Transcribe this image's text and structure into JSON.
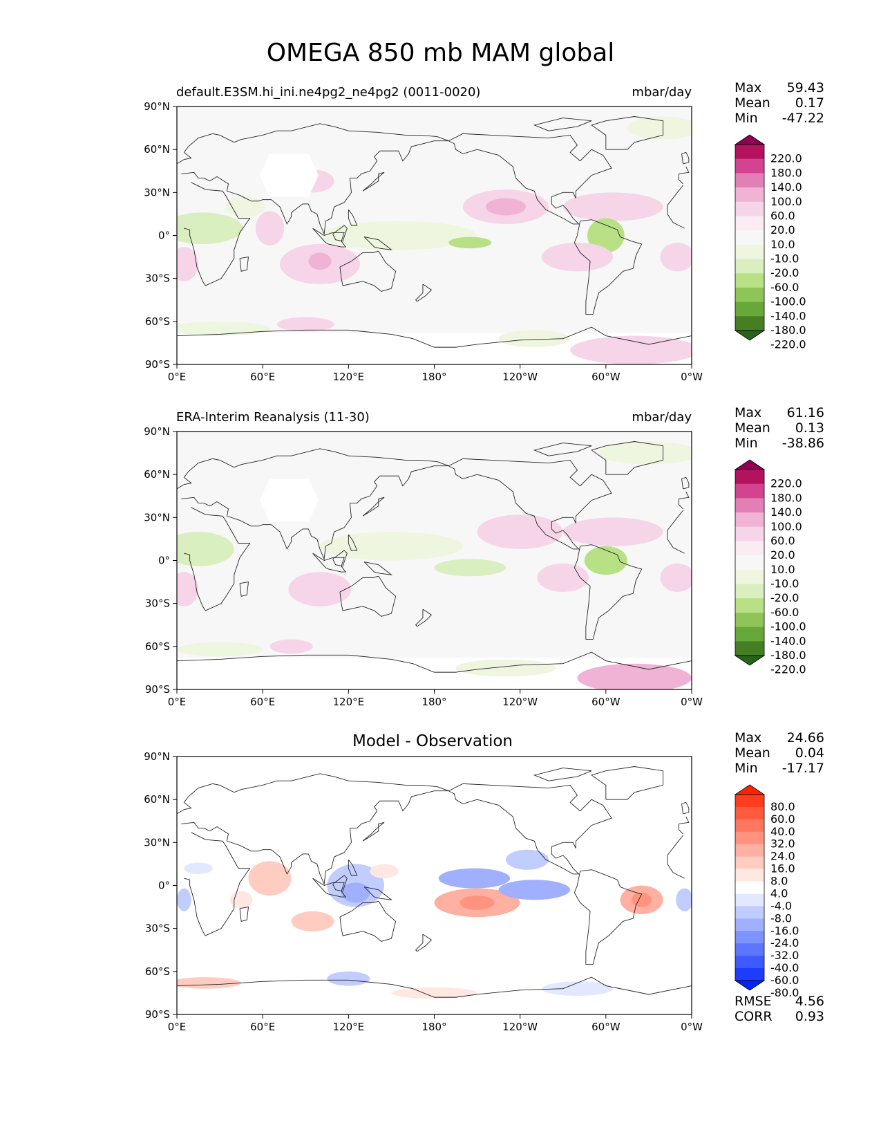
{
  "figure": {
    "title": "OMEGA 850 mb MAM global"
  },
  "axes": {
    "lat_labels": [
      "90°N",
      "60°N",
      "30°N",
      "0°",
      "30°S",
      "60°S",
      "90°S"
    ],
    "lon_labels": [
      "0°E",
      "60°E",
      "120°E",
      "180°",
      "120°W",
      "60°W",
      "0°W"
    ]
  },
  "panels": [
    {
      "left_title": "default.E3SM.hi_ini.ne4pg2_ne4pg2 (0011-0020)",
      "right_title": "mbar/day",
      "stats": [
        {
          "label": "Max",
          "value": "59.43"
        },
        {
          "label": "Mean",
          "value": "0.17"
        },
        {
          "label": "Min",
          "value": "-47.22"
        }
      ],
      "colorbar": {
        "labels": [
          "220.0",
          "180.0",
          "140.0",
          "100.0",
          "60.0",
          "20.0",
          "10.0",
          "-10.0",
          "-20.0",
          "-60.0",
          "-100.0",
          "-140.0",
          "-180.0",
          "-220.0"
        ],
        "colors": [
          "#8e0152",
          "#b4125f",
          "#d3438f",
          "#e27fb6",
          "#f0b3d6",
          "#f7d5e8",
          "#fbecf4",
          "#f7f7f7",
          "#eef6e0",
          "#d9efbf",
          "#b8e186",
          "#8fc459",
          "#66a83a",
          "#467f23",
          "#276419"
        ]
      },
      "extra_stats": []
    },
    {
      "left_title": "ERA-Interim Reanalysis (11-30)",
      "right_title": "mbar/day",
      "stats": [
        {
          "label": "Max",
          "value": "61.16"
        },
        {
          "label": "Mean",
          "value": "0.13"
        },
        {
          "label": "Min",
          "value": "-38.86"
        }
      ],
      "colorbar": {
        "labels": [
          "220.0",
          "180.0",
          "140.0",
          "100.0",
          "60.0",
          "20.0",
          "10.0",
          "-10.0",
          "-20.0",
          "-60.0",
          "-100.0",
          "-140.0",
          "-180.0",
          "-220.0"
        ],
        "colors": [
          "#8e0152",
          "#b4125f",
          "#d3438f",
          "#e27fb6",
          "#f0b3d6",
          "#f7d5e8",
          "#fbecf4",
          "#f7f7f7",
          "#eef6e0",
          "#d9efbf",
          "#b8e186",
          "#8fc459",
          "#66a83a",
          "#467f23",
          "#276419"
        ]
      },
      "extra_stats": []
    },
    {
      "center_title": "Model - Observation",
      "stats": [
        {
          "label": "Max",
          "value": "24.66"
        },
        {
          "label": "Mean",
          "value": "0.04"
        },
        {
          "label": "Min",
          "value": "-17.17"
        }
      ],
      "colorbar": {
        "labels": [
          "80.0",
          "60.0",
          "40.0",
          "32.0",
          "24.0",
          "16.0",
          "8.0",
          "4.0",
          "-4.0",
          "-8.0",
          "-16.0",
          "-24.0",
          "-32.0",
          "-40.0",
          "-60.0",
          "-80.0"
        ],
        "colors": [
          "#ff2200",
          "#ff3d1c",
          "#ff5a3d",
          "#ff765e",
          "#ff937f",
          "#ffb0a0",
          "#ffccc1",
          "#ffe8e2",
          "#ffffff",
          "#e2e8ff",
          "#c1ccff",
          "#a0b0ff",
          "#7f93ff",
          "#5e76ff",
          "#3d5aff",
          "#1c3dff",
          "#0022ff"
        ]
      },
      "extra_stats": [
        {
          "label": "RMSE",
          "value": "4.56"
        },
        {
          "label": "CORR",
          "value": "0.93"
        }
      ]
    }
  ],
  "map_data": {
    "type": "contour-map",
    "projection": "PlateCarree",
    "lon_range": [
      0,
      360
    ],
    "lat_range": [
      -90,
      90
    ],
    "panel_features": [
      {
        "fill": "#f7f7f7",
        "masked_region": {
          "lon": [
            58,
            99
          ],
          "lat": [
            27,
            57
          ]
        },
        "blobs": [
          {
            "lon": 18,
            "lat": 5,
            "rx": 28,
            "ry": 11,
            "color": "#d9efbf"
          },
          {
            "lon": 65,
            "lat": 5,
            "rx": 10,
            "ry": 12,
            "color": "#f7d5e8"
          },
          {
            "lon": 48,
            "lat": 20,
            "rx": 14,
            "ry": 7,
            "color": "#eef6e0"
          },
          {
            "lon": 95,
            "lat": 38,
            "rx": 15,
            "ry": 8,
            "color": "#f7d5e8"
          },
          {
            "lon": 155,
            "lat": 0,
            "rx": 55,
            "ry": 10,
            "color": "#eef6e0"
          },
          {
            "lon": 205,
            "lat": -5,
            "rx": 15,
            "ry": 4,
            "color": "#b8e186"
          },
          {
            "lon": 230,
            "lat": 20,
            "rx": 30,
            "ry": 12,
            "color": "#f7d5e8"
          },
          {
            "lon": 230,
            "lat": 20,
            "rx": 14,
            "ry": 6,
            "color": "#f0b3d6"
          },
          {
            "lon": 305,
            "lat": 20,
            "rx": 35,
            "ry": 10,
            "color": "#f7d5e8"
          },
          {
            "lon": 300,
            "lat": 0,
            "rx": 13,
            "ry": 12,
            "color": "#b8e186"
          },
          {
            "lon": 280,
            "lat": -15,
            "rx": 25,
            "ry": 10,
            "color": "#f7d5e8"
          },
          {
            "lon": 100,
            "lat": -20,
            "rx": 28,
            "ry": 14,
            "color": "#f7d5e8"
          },
          {
            "lon": 100,
            "lat": -18,
            "rx": 8,
            "ry": 6,
            "color": "#f0b3d6"
          },
          {
            "lon": 5,
            "lat": -20,
            "rx": 10,
            "ry": 12,
            "color": "#f7d5e8"
          },
          {
            "lon": 350,
            "lat": -15,
            "rx": 12,
            "ry": 10,
            "color": "#f7d5e8"
          },
          {
            "lon": 30,
            "lat": -65,
            "rx": 35,
            "ry": 5,
            "color": "#eef6e0"
          },
          {
            "lon": 90,
            "lat": -62,
            "rx": 20,
            "ry": 5,
            "color": "#f7d5e8"
          },
          {
            "lon": 250,
            "lat": -72,
            "rx": 25,
            "ry": 6,
            "color": "#eef6e0"
          },
          {
            "lon": 320,
            "lat": -80,
            "rx": 45,
            "ry": 10,
            "color": "#f7d5e8"
          },
          {
            "lon": 340,
            "lat": 75,
            "rx": 25,
            "ry": 8,
            "color": "#eef6e0"
          }
        ]
      },
      {
        "fill": "#f7f7f7",
        "masked_region": {
          "lon": [
            58,
            99
          ],
          "lat": [
            27,
            57
          ]
        },
        "blobs": [
          {
            "lon": 15,
            "lat": 8,
            "rx": 25,
            "ry": 12,
            "color": "#d9efbf"
          },
          {
            "lon": 150,
            "lat": 10,
            "rx": 50,
            "ry": 10,
            "color": "#eef6e0"
          },
          {
            "lon": 205,
            "lat": -5,
            "rx": 25,
            "ry": 6,
            "color": "#d9efbf"
          },
          {
            "lon": 240,
            "lat": 20,
            "rx": 30,
            "ry": 12,
            "color": "#f7d5e8"
          },
          {
            "lon": 305,
            "lat": 20,
            "rx": 35,
            "ry": 10,
            "color": "#f7d5e8"
          },
          {
            "lon": 300,
            "lat": 0,
            "rx": 15,
            "ry": 10,
            "color": "#b8e186"
          },
          {
            "lon": 270,
            "lat": -12,
            "rx": 18,
            "ry": 10,
            "color": "#f7d5e8"
          },
          {
            "lon": 100,
            "lat": -20,
            "rx": 22,
            "ry": 12,
            "color": "#f7d5e8"
          },
          {
            "lon": 5,
            "lat": -20,
            "rx": 10,
            "ry": 12,
            "color": "#f7d5e8"
          },
          {
            "lon": 350,
            "lat": -12,
            "rx": 12,
            "ry": 10,
            "color": "#f7d5e8"
          },
          {
            "lon": 30,
            "lat": -62,
            "rx": 30,
            "ry": 5,
            "color": "#eef6e0"
          },
          {
            "lon": 80,
            "lat": -60,
            "rx": 15,
            "ry": 5,
            "color": "#f7d5e8"
          },
          {
            "lon": 230,
            "lat": -75,
            "rx": 35,
            "ry": 6,
            "color": "#eef6e0"
          },
          {
            "lon": 320,
            "lat": -82,
            "rx": 40,
            "ry": 10,
            "color": "#f0b3d6"
          },
          {
            "lon": 330,
            "lat": 75,
            "rx": 35,
            "ry": 8,
            "color": "#eef6e0"
          }
        ]
      },
      {
        "fill": "#ffffff",
        "masked_region": null,
        "blobs": [
          {
            "lon": 65,
            "lat": 5,
            "rx": 15,
            "ry": 12,
            "color": "#ffccc1"
          },
          {
            "lon": 45,
            "lat": -10,
            "rx": 8,
            "ry": 6,
            "color": "#ffe8e2"
          },
          {
            "lon": 125,
            "lat": 0,
            "rx": 20,
            "ry": 15,
            "color": "#c1ccff"
          },
          {
            "lon": 125,
            "lat": -5,
            "rx": 10,
            "ry": 7,
            "color": "#a0b0ff"
          },
          {
            "lon": 145,
            "lat": 10,
            "rx": 10,
            "ry": 5,
            "color": "#ffe8e2"
          },
          {
            "lon": 208,
            "lat": 5,
            "rx": 25,
            "ry": 7,
            "color": "#a0b0ff"
          },
          {
            "lon": 210,
            "lat": -12,
            "rx": 30,
            "ry": 10,
            "color": "#ffb0a0"
          },
          {
            "lon": 210,
            "lat": -12,
            "rx": 12,
            "ry": 5,
            "color": "#ff937f"
          },
          {
            "lon": 250,
            "lat": -3,
            "rx": 25,
            "ry": 7,
            "color": "#a0b0ff"
          },
          {
            "lon": 245,
            "lat": 18,
            "rx": 15,
            "ry": 7,
            "color": "#c1ccff"
          },
          {
            "lon": 325,
            "lat": -10,
            "rx": 15,
            "ry": 10,
            "color": "#ffb0a0"
          },
          {
            "lon": 325,
            "lat": -10,
            "rx": 7,
            "ry": 5,
            "color": "#ff937f"
          },
          {
            "lon": 95,
            "lat": -25,
            "rx": 15,
            "ry": 7,
            "color": "#ffccc1"
          },
          {
            "lon": 120,
            "lat": -65,
            "rx": 15,
            "ry": 5,
            "color": "#c1ccff"
          },
          {
            "lon": 20,
            "lat": -68,
            "rx": 25,
            "ry": 4,
            "color": "#ffccc1"
          },
          {
            "lon": 180,
            "lat": -75,
            "rx": 30,
            "ry": 4,
            "color": "#ffe8e2"
          },
          {
            "lon": 280,
            "lat": -72,
            "rx": 25,
            "ry": 5,
            "color": "#e2e8ff"
          },
          {
            "lon": 5,
            "lat": -10,
            "rx": 5,
            "ry": 8,
            "color": "#c1ccff"
          },
          {
            "lon": 355,
            "lat": -10,
            "rx": 6,
            "ry": 8,
            "color": "#c1ccff"
          },
          {
            "lon": 15,
            "lat": 12,
            "rx": 10,
            "ry": 4,
            "color": "#e2e8ff"
          }
        ]
      }
    ]
  }
}
